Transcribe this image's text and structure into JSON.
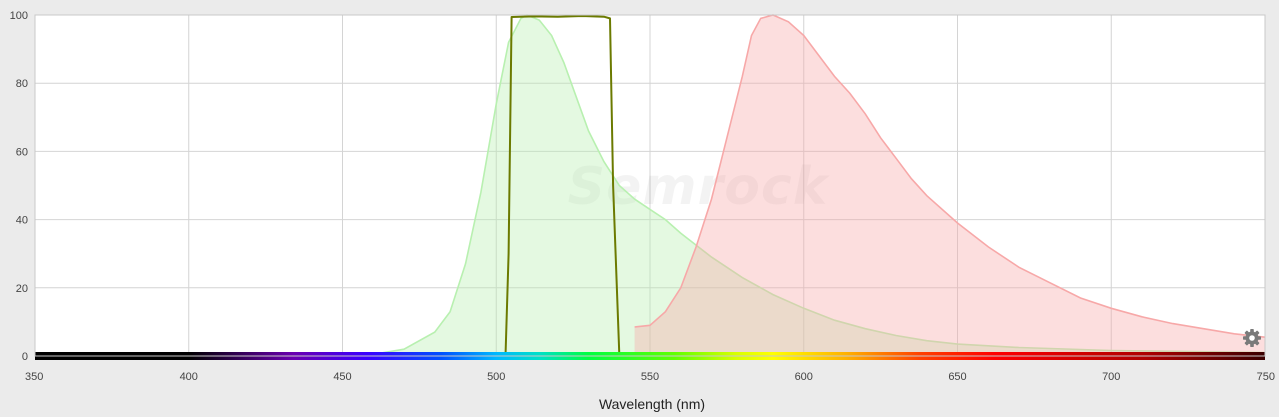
{
  "chart_data": {
    "type": "area",
    "xlabel": "Wavelength (nm)",
    "ylabel": "",
    "xlim": [
      350,
      750
    ],
    "ylim": [
      0,
      100
    ],
    "x_ticks": [
      350,
      400,
      450,
      500,
      550,
      600,
      650,
      700,
      750
    ],
    "y_ticks": [
      0,
      20,
      40,
      60,
      80,
      100
    ],
    "grid": true,
    "legend": "none",
    "watermark": "Semrock",
    "spectrum_bar": true,
    "series": [
      {
        "color": "#b8f0b0",
        "style": "filled-area",
        "points": [
          [
            350,
            0
          ],
          [
            440,
            0
          ],
          [
            460,
            0.5
          ],
          [
            470,
            2
          ],
          [
            480,
            7
          ],
          [
            485,
            13
          ],
          [
            490,
            27
          ],
          [
            495,
            48
          ],
          [
            500,
            74
          ],
          [
            504,
            92
          ],
          [
            508,
            99
          ],
          [
            510,
            100
          ],
          [
            514,
            98.5
          ],
          [
            518,
            94
          ],
          [
            522,
            86
          ],
          [
            526,
            76
          ],
          [
            530,
            66
          ],
          [
            535,
            57
          ],
          [
            540,
            50
          ],
          [
            545,
            46
          ],
          [
            550,
            43
          ],
          [
            555,
            40
          ],
          [
            560,
            36
          ],
          [
            570,
            29
          ],
          [
            580,
            23
          ],
          [
            590,
            18
          ],
          [
            600,
            14
          ],
          [
            610,
            10.5
          ],
          [
            620,
            8
          ],
          [
            630,
            6
          ],
          [
            640,
            4.5
          ],
          [
            650,
            3.5
          ],
          [
            670,
            2.5
          ],
          [
            700,
            1.6
          ],
          [
            750,
            1
          ]
        ]
      },
      {
        "color": "#f7a8a8",
        "style": "filled-area",
        "points": [
          [
            545,
            8.5
          ],
          [
            550,
            9
          ],
          [
            555,
            13
          ],
          [
            560,
            20
          ],
          [
            565,
            32
          ],
          [
            570,
            46
          ],
          [
            575,
            64
          ],
          [
            580,
            82
          ],
          [
            583,
            94
          ],
          [
            586,
            99
          ],
          [
            590,
            100
          ],
          [
            595,
            98
          ],
          [
            600,
            94
          ],
          [
            605,
            88
          ],
          [
            610,
            82
          ],
          [
            615,
            77
          ],
          [
            620,
            71
          ],
          [
            625,
            64
          ],
          [
            630,
            58
          ],
          [
            635,
            52
          ],
          [
            640,
            47
          ],
          [
            650,
            39
          ],
          [
            660,
            32
          ],
          [
            670,
            26
          ],
          [
            680,
            21.5
          ],
          [
            690,
            17
          ],
          [
            700,
            14
          ],
          [
            710,
            11.5
          ],
          [
            720,
            9.5
          ],
          [
            730,
            8
          ],
          [
            740,
            6.5
          ],
          [
            750,
            5.5
          ]
        ]
      },
      {
        "color": "#6b7a00",
        "style": "line",
        "points": [
          [
            350,
            0
          ],
          [
            503,
            0
          ],
          [
            504,
            30
          ],
          [
            505,
            99.4
          ],
          [
            512,
            99.6
          ],
          [
            520,
            99.5
          ],
          [
            528,
            99.7
          ],
          [
            535,
            99.5
          ],
          [
            537,
            99
          ],
          [
            538,
            50
          ],
          [
            540,
            0.5
          ],
          [
            542,
            0
          ],
          [
            750,
            0
          ]
        ]
      }
    ]
  },
  "ui": {
    "settings_icon": "gear-icon",
    "colors": {
      "background": "#ebebeb",
      "plot_background": "#ffffff",
      "grid": "#d0d0d0"
    }
  }
}
